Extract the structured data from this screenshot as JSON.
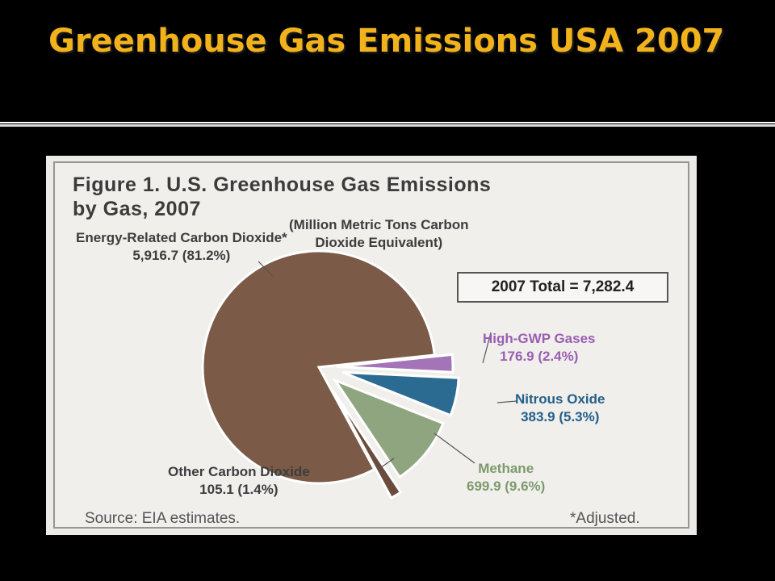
{
  "slide": {
    "title": "Greenhouse Gas Emissions USA 2007"
  },
  "colors": {
    "background": "#000000",
    "title": "#f2b21b"
  },
  "figure": {
    "title": "Figure 1. U.S. Greenhouse Gas Emissions\nby Gas, 2007",
    "units": "(Million Metric Tons Carbon\nDioxide Equivalent)",
    "total": "2007 Total = 7,282.4",
    "source": "Source: EIA estimates.",
    "footnote": "*Adjusted."
  },
  "chart_data": {
    "type": "pie",
    "title": "Figure 1. U.S. Greenhouse Gas Emissions by Gas, 2007",
    "units": "Million Metric Tons Carbon Dioxide Equivalent",
    "total": 7282.4,
    "slices": [
      {
        "name": "Energy-Related Carbon Dioxide*",
        "value": 5916.7,
        "percent": 81.2,
        "value_label": "5,916.7 (81.2%)",
        "color": "#7b5a47",
        "exploded": false
      },
      {
        "name": "High-GWP Gases",
        "value": 176.9,
        "percent": 2.4,
        "value_label": "176.9 (2.4%)",
        "color": "#a374b7",
        "exploded": true
      },
      {
        "name": "Nitrous Oxide",
        "value": 383.9,
        "percent": 5.3,
        "value_label": "383.9 (5.3%)",
        "color": "#2b6b91",
        "exploded": true
      },
      {
        "name": "Methane",
        "value": 699.9,
        "percent": 9.6,
        "value_label": "699.9 (9.6%)",
        "color": "#8ea57f",
        "exploded": true
      },
      {
        "name": "Other Carbon Dioxide",
        "value": 105.1,
        "percent": 1.4,
        "value_label": "105.1 (1.4%)",
        "color": "#6b4c3c",
        "exploded": true
      }
    ],
    "label_colors": {
      "Energy-Related Carbon Dioxide*": "#3d3d3d",
      "High-GWP Gases": "#9a5fb2",
      "Nitrous Oxide": "#245f8a",
      "Methane": "#7c9a6c",
      "Other Carbon Dioxide": "#3d3d3d"
    }
  }
}
